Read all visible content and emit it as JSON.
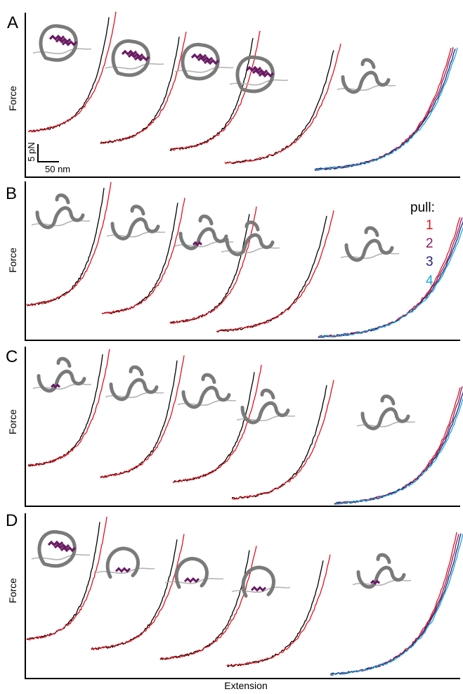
{
  "figure": {
    "xlabel": "Extension",
    "ylabel": "Force",
    "scalebar": {
      "force_label": "5 pN",
      "extension_label": "50 nm"
    },
    "legend": {
      "title": "pull:",
      "entries": [
        {
          "label": "1",
          "color": "#e0141e"
        },
        {
          "label": "2",
          "color": "#8c1a5a"
        },
        {
          "label": "3",
          "color": "#23237a"
        },
        {
          "label": "4",
          "color": "#19a9d6"
        }
      ]
    },
    "colors": {
      "pull1": "#e0141e",
      "pull2": "#8c1a5a",
      "pull3": "#23237a",
      "pull4": "#19a9d6",
      "first_trace": "#000000",
      "tether": "#7a7a7a",
      "tether_light": "#b4b4b4",
      "helix": "#6a1b63"
    }
  },
  "chart_data": [
    {
      "type": "line",
      "panel": "A",
      "xlabel": "",
      "ylabel": "Force",
      "curves": [
        {
          "folded": true,
          "series": [
            {
              "name": "",
              "color": "#000000"
            },
            {
              "name": "1",
              "color": "#e0141e"
            }
          ]
        },
        {
          "folded": true,
          "series": [
            {
              "name": "",
              "color": "#000000"
            },
            {
              "name": "1",
              "color": "#e0141e"
            }
          ]
        },
        {
          "folded": true,
          "series": [
            {
              "name": "",
              "color": "#000000"
            },
            {
              "name": "1",
              "color": "#e0141e"
            }
          ]
        },
        {
          "folded": true,
          "series": [
            {
              "name": "",
              "color": "#000000"
            },
            {
              "name": "1",
              "color": "#e0141e"
            }
          ]
        },
        {
          "folded": false,
          "series": [
            {
              "name": "1",
              "color": "#e0141e"
            },
            {
              "name": "2",
              "color": "#8c1a5a"
            },
            {
              "name": "3",
              "color": "#23237a"
            },
            {
              "name": "4",
              "color": "#19a9d6"
            }
          ]
        }
      ]
    },
    {
      "type": "line",
      "panel": "B",
      "xlabel": "",
      "ylabel": "Force",
      "curves": [
        {
          "folded": false,
          "series": [
            {
              "name": "",
              "color": "#000000"
            },
            {
              "name": "1",
              "color": "#e0141e"
            }
          ]
        },
        {
          "folded": false,
          "series": [
            {
              "name": "",
              "color": "#000000"
            },
            {
              "name": "1",
              "color": "#e0141e"
            }
          ]
        },
        {
          "folded": "partial",
          "series": [
            {
              "name": "",
              "color": "#000000"
            },
            {
              "name": "1",
              "color": "#e0141e"
            }
          ]
        },
        {
          "folded": false,
          "series": [
            {
              "name": "",
              "color": "#000000"
            },
            {
              "name": "1",
              "color": "#e0141e"
            }
          ]
        },
        {
          "folded": false,
          "series": [
            {
              "name": "1",
              "color": "#e0141e"
            },
            {
              "name": "2",
              "color": "#8c1a5a"
            },
            {
              "name": "3",
              "color": "#23237a"
            },
            {
              "name": "4",
              "color": "#19a9d6"
            }
          ]
        }
      ]
    },
    {
      "type": "line",
      "panel": "C",
      "xlabel": "",
      "ylabel": "Force",
      "curves": [
        {
          "folded": "partial",
          "series": [
            {
              "name": "",
              "color": "#000000"
            },
            {
              "name": "1",
              "color": "#e0141e"
            }
          ]
        },
        {
          "folded": false,
          "series": [
            {
              "name": "",
              "color": "#000000"
            },
            {
              "name": "1",
              "color": "#e0141e"
            }
          ]
        },
        {
          "folded": false,
          "series": [
            {
              "name": "",
              "color": "#000000"
            },
            {
              "name": "1",
              "color": "#e0141e"
            }
          ]
        },
        {
          "folded": false,
          "series": [
            {
              "name": "",
              "color": "#000000"
            },
            {
              "name": "1",
              "color": "#e0141e"
            }
          ]
        },
        {
          "folded": false,
          "series": [
            {
              "name": "1",
              "color": "#e0141e"
            },
            {
              "name": "2",
              "color": "#8c1a5a"
            },
            {
              "name": "3",
              "color": "#23237a"
            },
            {
              "name": "4",
              "color": "#19a9d6"
            }
          ]
        }
      ]
    },
    {
      "type": "line",
      "panel": "D",
      "xlabel": "Extension",
      "ylabel": "Force",
      "curves": [
        {
          "folded": true,
          "series": [
            {
              "name": "",
              "color": "#000000"
            },
            {
              "name": "1",
              "color": "#e0141e"
            }
          ]
        },
        {
          "folded": "ring",
          "series": [
            {
              "name": "",
              "color": "#000000"
            },
            {
              "name": "1",
              "color": "#e0141e"
            }
          ]
        },
        {
          "folded": "ring",
          "series": [
            {
              "name": "",
              "color": "#000000"
            },
            {
              "name": "1",
              "color": "#e0141e"
            }
          ]
        },
        {
          "folded": "ring",
          "series": [
            {
              "name": "",
              "color": "#000000"
            },
            {
              "name": "1",
              "color": "#e0141e"
            }
          ]
        },
        {
          "folded": "partial",
          "series": [
            {
              "name": "1",
              "color": "#e0141e"
            },
            {
              "name": "2",
              "color": "#8c1a5a"
            },
            {
              "name": "3",
              "color": "#23237a"
            },
            {
              "name": "4",
              "color": "#19a9d6"
            }
          ]
        }
      ]
    }
  ],
  "panels": [
    {
      "label": "A"
    },
    {
      "label": "B"
    },
    {
      "label": "C"
    },
    {
      "label": "D"
    }
  ]
}
